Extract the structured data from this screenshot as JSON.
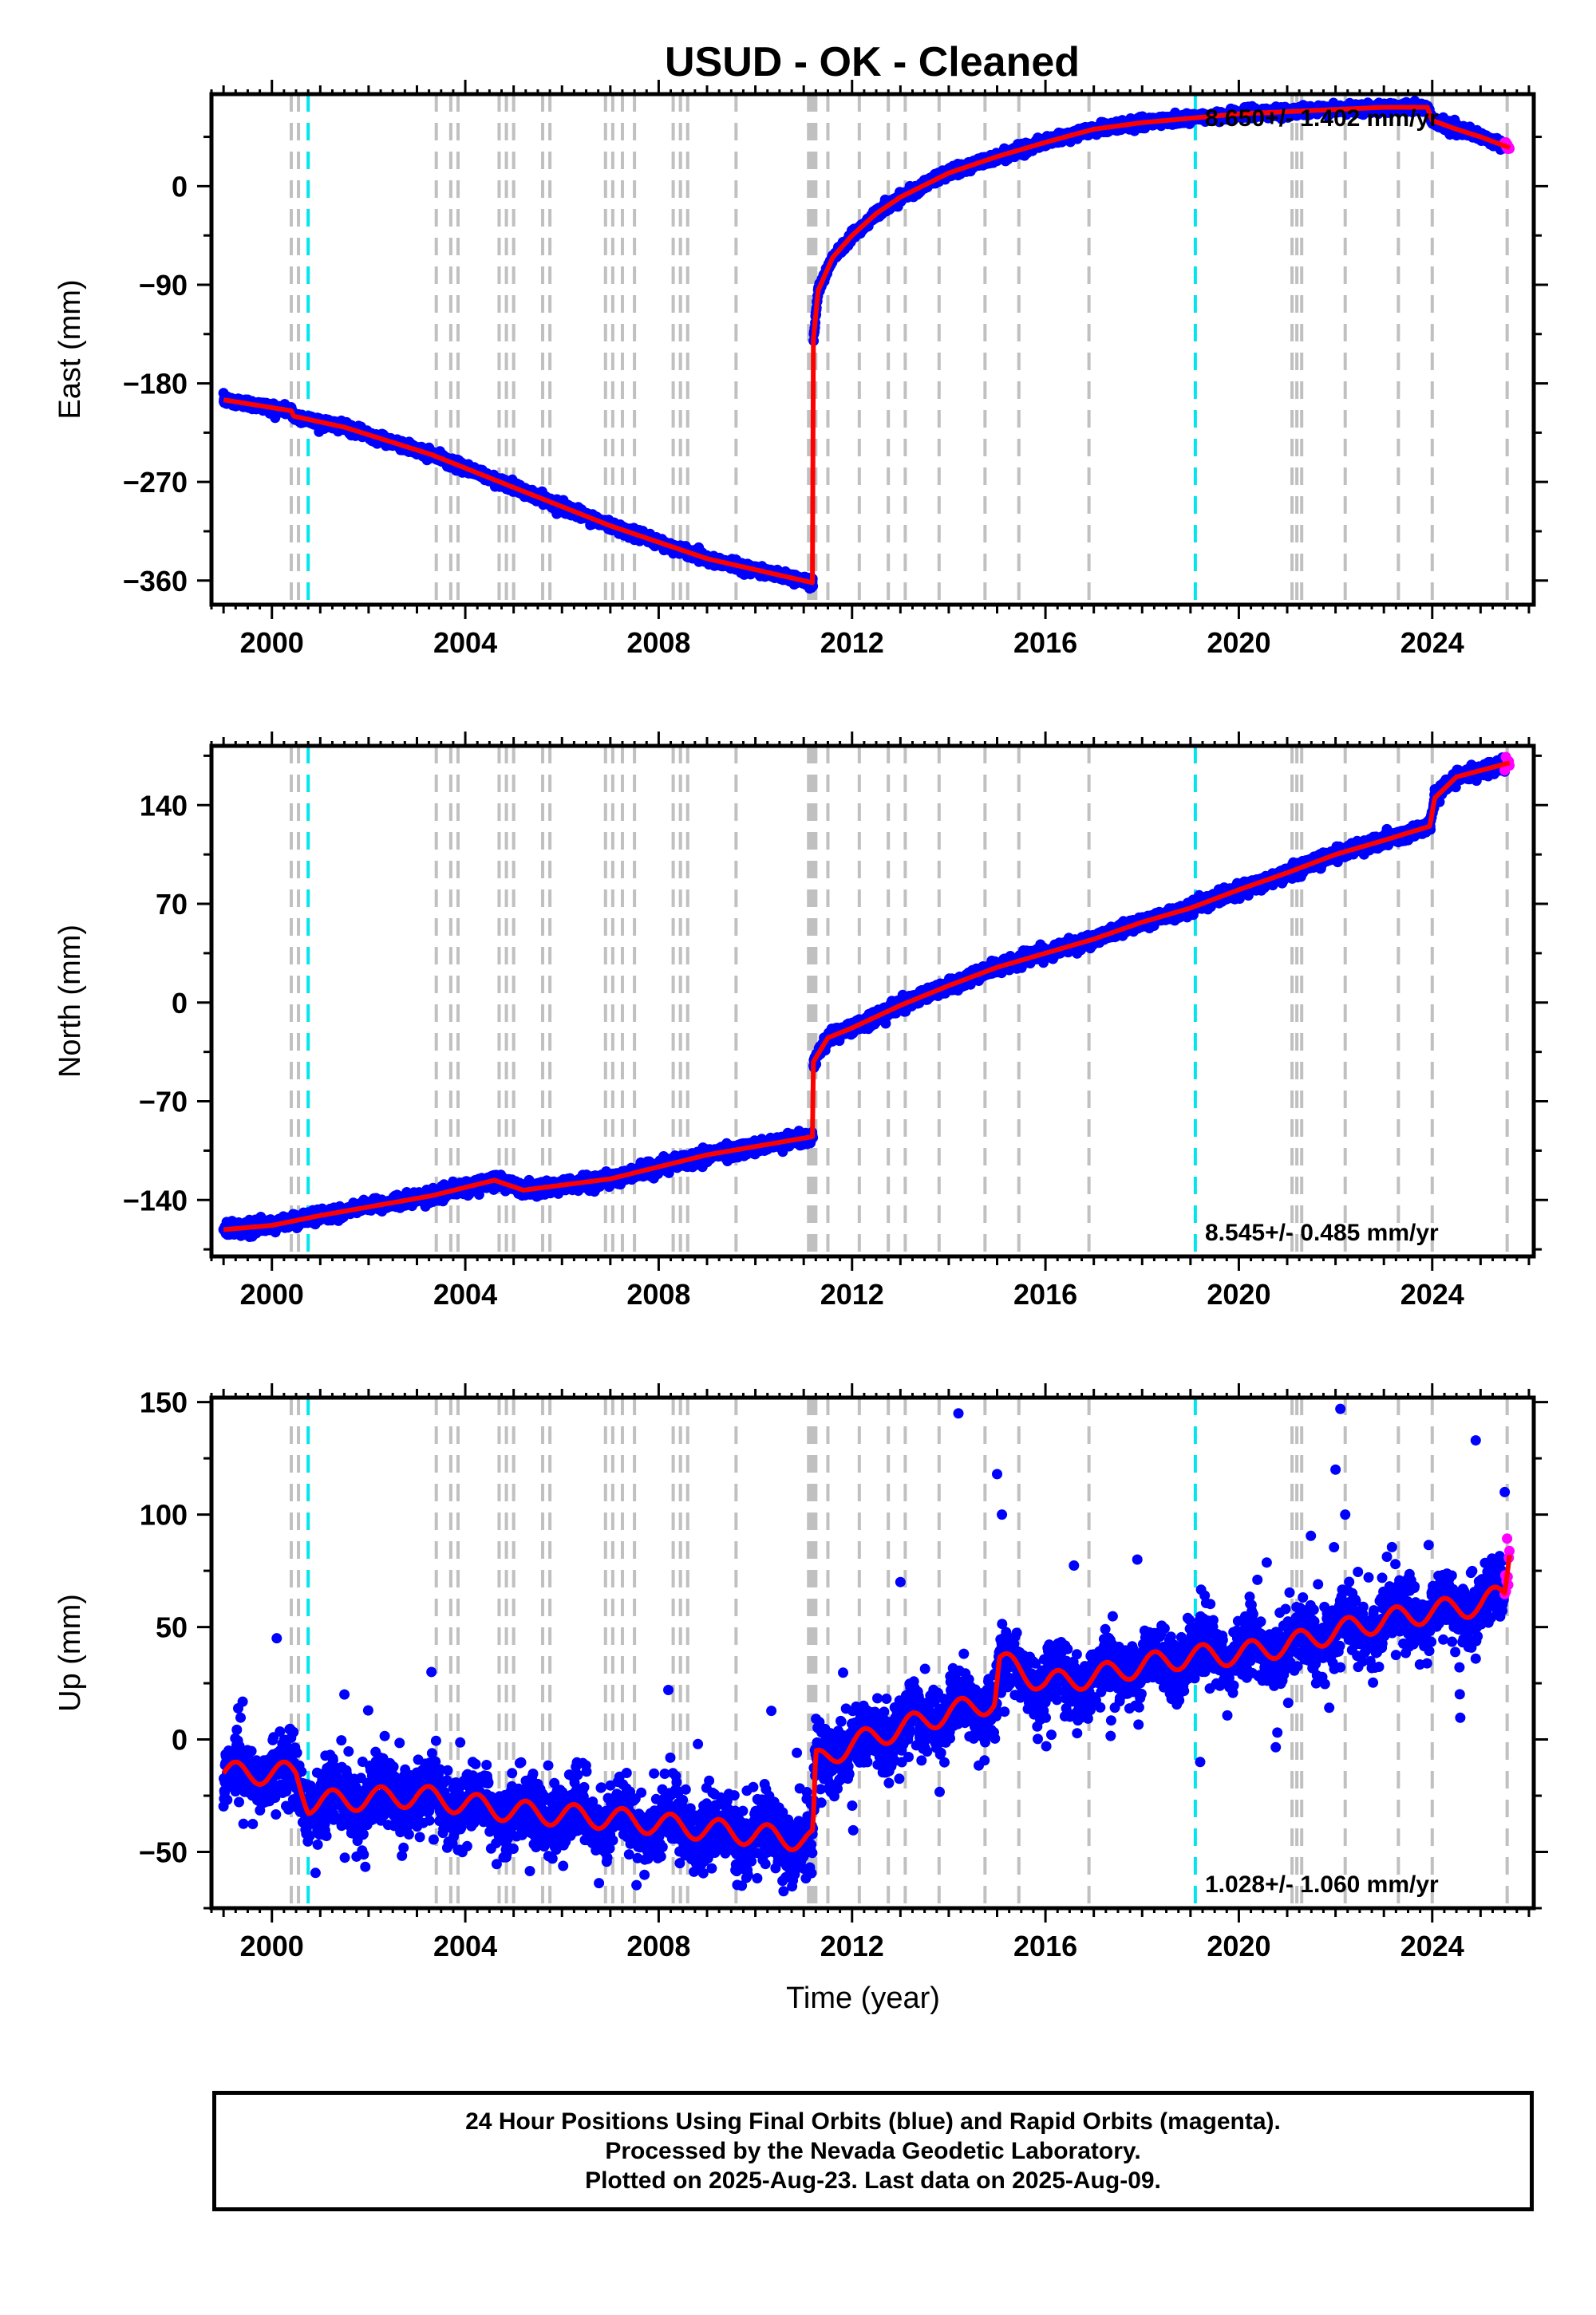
{
  "title": "USUD  - OK - Cleaned",
  "footer": {
    "line1": "24 Hour Positions Using Final Orbits (blue) and Rapid Orbits (magenta).",
    "line2": "Processed by the Nevada Geodetic Laboratory.",
    "line3": "Plotted on 2025-Aug-23. Last data on 2025-Aug-09."
  },
  "colors": {
    "final_orbits": "#0000ff",
    "rapid_orbits": "#ff00ff",
    "model": "#ff0000",
    "equipment_change": "#c0c0c0",
    "earthquake": "#00e5ee"
  },
  "chart_data": [
    {
      "type": "scatter",
      "name": "east",
      "title": "USUD  - OK - Cleaned",
      "xlabel": "",
      "ylabel": "East (mm)",
      "xlim": [
        1998.75,
        2026.1
      ],
      "ylim": [
        -382,
        84
      ],
      "xticks": [
        2000,
        2004,
        2008,
        2012,
        2016,
        2020,
        2024
      ],
      "yticks": [
        0,
        -90,
        -180,
        -270,
        -360
      ],
      "rate": "8.650+/- 1.402 mm/yr",
      "rate_position": "top-right",
      "model_knots": [
        [
          1999.0,
          -195
        ],
        [
          2000.4,
          -205
        ],
        [
          2000.45,
          -210
        ],
        [
          2001.5,
          -220
        ],
        [
          2003.3,
          -245
        ],
        [
          2005.0,
          -275
        ],
        [
          2007.0,
          -310
        ],
        [
          2009.0,
          -340
        ],
        [
          2011.19,
          -362
        ],
        [
          2011.2,
          -140
        ],
        [
          2011.3,
          -95
        ],
        [
          2011.6,
          -65
        ],
        [
          2012.0,
          -45
        ],
        [
          2012.5,
          -25
        ],
        [
          2013.0,
          -10
        ],
        [
          2014.0,
          12
        ],
        [
          2015.0,
          27
        ],
        [
          2016.0,
          40
        ],
        [
          2017.0,
          52
        ],
        [
          2018.0,
          58
        ],
        [
          2019.0,
          62
        ],
        [
          2020.0,
          66
        ],
        [
          2021.0,
          68
        ],
        [
          2022.0,
          70
        ],
        [
          2023.0,
          72
        ],
        [
          2023.9,
          72
        ],
        [
          2024.0,
          60
        ],
        [
          2024.5,
          52
        ],
        [
          2025.0,
          45
        ],
        [
          2025.6,
          35
        ]
      ],
      "vertical_lines_gray": [
        2000.4,
        2000.55,
        2003.4,
        2003.7,
        2003.85,
        2004.7,
        2004.85,
        2005.0,
        2005.6,
        2005.75,
        2006.9,
        2007.05,
        2007.25,
        2007.5,
        2008.3,
        2008.45,
        2008.6,
        2009.6,
        2011.1,
        2011.15,
        2011.2,
        2011.25,
        2011.5,
        2012.15,
        2012.75,
        2013.1,
        2013.8,
        2014.75,
        2015.45,
        2016.9,
        2021.1,
        2021.2,
        2021.3,
        2022.2,
        2023.3,
        2024.0,
        2025.55
      ],
      "vertical_lines_cyan": [
        2000.75,
        2019.1
      ],
      "series": [
        {
          "name": "Final Orbits",
          "color": "#0000ff",
          "range": [
            1999.0,
            2025.5
          ],
          "scatter_mm": 4
        },
        {
          "name": "Rapid Orbits",
          "color": "#ff00ff",
          "range": [
            2025.5,
            2025.6
          ],
          "scatter_mm": 4
        }
      ]
    },
    {
      "type": "scatter",
      "name": "north",
      "title": "",
      "xlabel": "",
      "ylabel": "North (mm)",
      "xlim": [
        1998.75,
        2026.1
      ],
      "ylim": [
        -180,
        182
      ],
      "xticks": [
        2000,
        2004,
        2008,
        2012,
        2016,
        2020,
        2024
      ],
      "yticks": [
        140,
        70,
        0,
        -70,
        -140
      ],
      "rate": "8.545+/- 0.485 mm/yr",
      "rate_position": "bottom-right",
      "model_knots": [
        [
          1999.0,
          -161
        ],
        [
          2000.0,
          -158
        ],
        [
          2001.0,
          -151
        ],
        [
          2003.3,
          -137
        ],
        [
          2004.6,
          -126
        ],
        [
          2005.2,
          -133
        ],
        [
          2007.0,
          -125
        ],
        [
          2009.0,
          -108
        ],
        [
          2011.19,
          -95
        ],
        [
          2011.2,
          -42
        ],
        [
          2011.5,
          -25
        ],
        [
          2012.0,
          -18
        ],
        [
          2013.0,
          -2
        ],
        [
          2014.0,
          12
        ],
        [
          2015.0,
          25
        ],
        [
          2016.0,
          35
        ],
        [
          2017.0,
          45
        ],
        [
          2018.0,
          57
        ],
        [
          2019.0,
          67
        ],
        [
          2020.0,
          80
        ],
        [
          2021.0,
          92
        ],
        [
          2022.0,
          105
        ],
        [
          2023.0,
          115
        ],
        [
          2023.95,
          125
        ],
        [
          2024.05,
          145
        ],
        [
          2024.5,
          160
        ],
        [
          2025.6,
          170
        ]
      ],
      "vertical_lines_gray": [
        2000.4,
        2000.55,
        2003.4,
        2003.7,
        2003.85,
        2004.7,
        2004.85,
        2005.0,
        2005.6,
        2005.75,
        2006.9,
        2007.05,
        2007.25,
        2007.5,
        2008.3,
        2008.45,
        2008.6,
        2009.6,
        2011.1,
        2011.15,
        2011.2,
        2011.25,
        2011.5,
        2012.15,
        2012.75,
        2013.1,
        2013.8,
        2014.75,
        2015.45,
        2016.9,
        2021.1,
        2021.2,
        2021.3,
        2022.2,
        2023.3,
        2024.0,
        2025.55
      ],
      "vertical_lines_cyan": [
        2000.75,
        2019.1
      ],
      "series": [
        {
          "name": "Final Orbits",
          "color": "#0000ff",
          "range": [
            1999.0,
            2025.5
          ],
          "scatter_mm": 4
        },
        {
          "name": "Rapid Orbits",
          "color": "#ff00ff",
          "range": [
            2025.5,
            2025.6
          ],
          "scatter_mm": 4
        }
      ]
    },
    {
      "type": "scatter",
      "name": "up",
      "title": "",
      "xlabel": "Time (year)",
      "ylabel": "Up (mm)",
      "xlim": [
        1998.75,
        2026.1
      ],
      "ylim": [
        -75,
        152
      ],
      "xticks": [
        2000,
        2004,
        2008,
        2012,
        2016,
        2020,
        2024
      ],
      "yticks": [
        150,
        100,
        50,
        0,
        -50
      ],
      "rate": "1.028+/- 1.060 mm/yr",
      "rate_position": "bottom-right",
      "model_knots": [
        [
          1999.0,
          -15
        ],
        [
          2000.5,
          -15
        ],
        [
          2000.75,
          -28
        ],
        [
          2003.0,
          -25
        ],
        [
          2005.0,
          -32
        ],
        [
          2007.0,
          -35
        ],
        [
          2009.0,
          -40
        ],
        [
          2011.19,
          -45
        ],
        [
          2011.25,
          -10
        ],
        [
          2012.0,
          -2
        ],
        [
          2013.0,
          5
        ],
        [
          2014.0,
          12
        ],
        [
          2014.95,
          17
        ],
        [
          2015.05,
          35
        ],
        [
          2016.0,
          25
        ],
        [
          2017.0,
          28
        ],
        [
          2018.0,
          33
        ],
        [
          2019.0,
          37
        ],
        [
          2020.0,
          38
        ],
        [
          2021.0,
          42
        ],
        [
          2022.0,
          48
        ],
        [
          2023.0,
          53
        ],
        [
          2024.0,
          57
        ],
        [
          2025.0,
          60
        ],
        [
          2025.5,
          65
        ],
        [
          2025.6,
          85
        ]
      ],
      "seasonal_amplitude": 5,
      "vertical_lines_gray": [
        2000.4,
        2000.55,
        2003.4,
        2003.7,
        2003.85,
        2004.7,
        2004.85,
        2005.0,
        2005.6,
        2005.75,
        2006.9,
        2007.05,
        2007.25,
        2007.5,
        2008.3,
        2008.45,
        2008.6,
        2009.6,
        2011.1,
        2011.15,
        2011.2,
        2011.25,
        2011.5,
        2012.15,
        2012.75,
        2013.1,
        2013.8,
        2014.75,
        2015.45,
        2016.9,
        2021.1,
        2021.2,
        2021.3,
        2022.2,
        2023.3,
        2024.0,
        2025.55
      ],
      "vertical_lines_cyan": [
        2000.75,
        2019.1
      ],
      "series": [
        {
          "name": "Final Orbits",
          "color": "#0000ff",
          "range": [
            1999.0,
            2025.5
          ],
          "scatter_mm": 13
        },
        {
          "name": "Rapid Orbits",
          "color": "#ff00ff",
          "range": [
            2025.5,
            2025.6
          ],
          "scatter_mm": 12
        }
      ],
      "outliers": [
        [
          2000.1,
          45
        ],
        [
          2001.5,
          20
        ],
        [
          2003.3,
          30
        ],
        [
          2008.2,
          22
        ],
        [
          2013.0,
          70
        ],
        [
          2014.2,
          145
        ],
        [
          2015.0,
          118
        ],
        [
          2015.1,
          100
        ],
        [
          2017.9,
          80
        ],
        [
          2019.2,
          -10
        ],
        [
          2022.0,
          120
        ],
        [
          2022.1,
          147
        ],
        [
          2022.2,
          100
        ],
        [
          2024.9,
          133
        ],
        [
          2025.5,
          110
        ]
      ]
    }
  ]
}
